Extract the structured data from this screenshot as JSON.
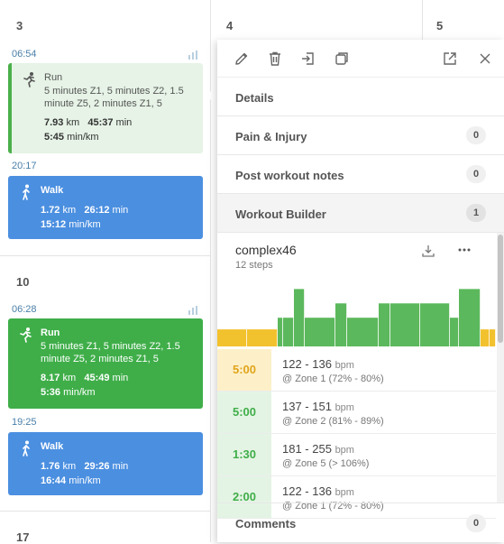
{
  "calendar": {
    "days": [
      "3",
      "4",
      "5",
      "10",
      "17"
    ],
    "weeks": [
      {
        "day": "3",
        "workouts": [
          {
            "time": "06:54",
            "type": "Run",
            "description": "5 minutes Z1, 5 minutes Z2, 1.5 minute Z5, 2 minutes Z1, 5",
            "distance": "7.93",
            "dist_unit": "km",
            "duration": "45:37",
            "dur_unit": "min",
            "pace": "5:45",
            "pace_unit": "min/km"
          },
          {
            "time": "20:17",
            "type": "Walk",
            "distance": "1.72",
            "dist_unit": "km",
            "duration": "26:12",
            "dur_unit": "min",
            "pace": "15:12",
            "pace_unit": "min/km"
          }
        ]
      },
      {
        "day": "10",
        "workouts": [
          {
            "time": "06:28",
            "type": "Run",
            "description": "5 minutes Z1, 5 minutes Z2, 1.5 minute Z5, 2 minutes Z1, 5",
            "distance": "8.17",
            "dist_unit": "km",
            "duration": "45:49",
            "dur_unit": "min",
            "pace": "5:36",
            "pace_unit": "min/km"
          },
          {
            "time": "19:25",
            "type": "Walk",
            "distance": "1.76",
            "dist_unit": "km",
            "duration": "29:26",
            "dur_unit": "min",
            "pace": "16:44",
            "pace_unit": "min/km"
          }
        ]
      }
    ]
  },
  "popup": {
    "toolbar": [
      "pencil-icon",
      "trash-icon",
      "move-icon",
      "copy-icon",
      "external-link-icon",
      "close-icon"
    ],
    "sections": [
      {
        "label": "Details",
        "count": null
      },
      {
        "label": "Pain & Injury",
        "count": "0"
      },
      {
        "label": "Post workout notes",
        "count": "0"
      },
      {
        "label": "Workout Builder",
        "count": "1"
      }
    ],
    "builder": {
      "name": "complex46",
      "steps_label": "12 steps",
      "profile_levels": [
        1,
        1,
        2,
        2,
        4,
        2,
        3,
        2,
        3,
        3,
        3,
        2,
        4,
        1,
        1
      ],
      "steps": [
        {
          "duration": "5:00",
          "hr": "122 - 136",
          "unit": "bpm",
          "zone": "@ Zone 1 (72% - 80%)",
          "zone_class": "z1"
        },
        {
          "duration": "5:00",
          "hr": "137 - 151",
          "unit": "bpm",
          "zone": "@ Zone 2 (81% - 89%)",
          "zone_class": "z2"
        },
        {
          "duration": "1:30",
          "hr": "181 - 255",
          "unit": "bpm",
          "zone": "@ Zone 5 (> 106%)",
          "zone_class": "z2"
        },
        {
          "duration": "2:00",
          "hr": "122 - 136",
          "unit": "bpm",
          "zone": "@ Zone 1 (72% - 80%)",
          "zone_class": "z2"
        }
      ]
    },
    "comments": {
      "label": "Comments",
      "count": "0"
    }
  },
  "colors": {
    "run": "#3fae49",
    "walk": "#4b8fe0",
    "zone1": "#f2c12e",
    "zone2": "#5cb85c",
    "accent": "#4a7fa8"
  }
}
